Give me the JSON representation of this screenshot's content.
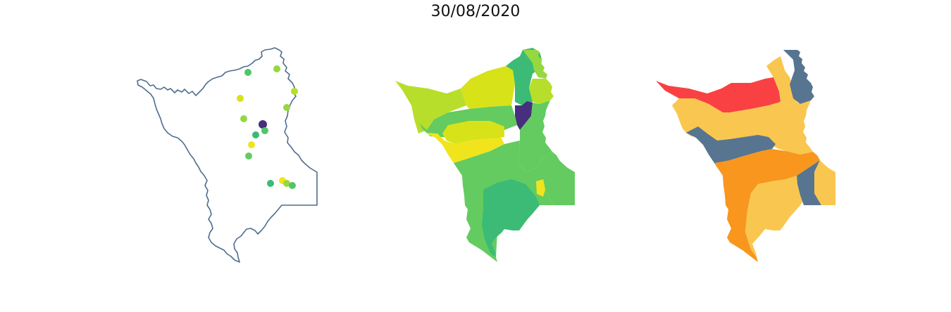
{
  "title": "30/08/2020",
  "colors": {
    "outline": "#4f6d8f",
    "viridis": [
      "#472f7d",
      "#3bbb75",
      "#51c56a",
      "#63cb5f",
      "#95d840",
      "#b7de2a",
      "#d8e219",
      "#f0e51c"
    ],
    "risk": {
      "red": "#f94144",
      "orange": "#f8961e",
      "yellow": "#f9c74f",
      "slate": "#577590"
    }
  },
  "panels": [
    {
      "name": "station-points-map",
      "type": "point-map"
    },
    {
      "name": "basin-index-map",
      "type": "choropleth-continuous"
    },
    {
      "name": "basin-risk-map",
      "type": "choropleth-categorical"
    }
  ]
}
